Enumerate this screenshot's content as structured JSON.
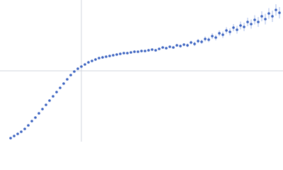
{
  "chart_data": {
    "type": "scatter",
    "xlim": [
      -115,
      285
    ],
    "ylim": [
      -100,
      100
    ],
    "series": [
      {
        "color": "#3a62c0",
        "error_color": "#a9bde8",
        "x": [
          -100,
          -95,
          -90,
          -85,
          -80,
          -75,
          -70,
          -65,
          -60,
          -55,
          -50,
          -45,
          -40,
          -35,
          -30,
          -25,
          -20,
          -15,
          -10,
          -5,
          0,
          5,
          10,
          15,
          20,
          25,
          30,
          35,
          40,
          45,
          50,
          55,
          60,
          65,
          70,
          75,
          80,
          85,
          90,
          95,
          100,
          105,
          110,
          115,
          120,
          125,
          130,
          135,
          140,
          145,
          150,
          155,
          160,
          165,
          170,
          175,
          180,
          185,
          190,
          195,
          200,
          205,
          210,
          215,
          220,
          225,
          230,
          235,
          240,
          245,
          250,
          255,
          260,
          265,
          270,
          275,
          280
        ],
        "values": [
          -95,
          -92,
          -89,
          -86,
          -82,
          -77,
          -71,
          -66,
          -60,
          -54,
          -48,
          -42,
          -36,
          -30,
          -24,
          -18,
          -12,
          -6,
          -1,
          3,
          6,
          9,
          12,
          14,
          16,
          18,
          19,
          20,
          21,
          22,
          23,
          24,
          25,
          25,
          26,
          27,
          27,
          28,
          28,
          29,
          30,
          29,
          31,
          33,
          32,
          34,
          33,
          36,
          35,
          37,
          36,
          40,
          38,
          42,
          41,
          45,
          44,
          49,
          47,
          53,
          51,
          57,
          55,
          61,
          58,
          64,
          62,
          69,
          66,
          72,
          69,
          77,
          73,
          81,
          77,
          86,
          82
        ],
        "errors": [
          0.5,
          0.5,
          0.5,
          0.5,
          0.5,
          0.5,
          0.5,
          0.5,
          0.5,
          0.5,
          0.5,
          0.5,
          0.5,
          0.5,
          0.5,
          0.5,
          0.5,
          0.5,
          0.5,
          0.5,
          0.5,
          0.5,
          0.5,
          0.5,
          0.5,
          0.5,
          0.5,
          0.5,
          0.5,
          0.5,
          0.5,
          0.5,
          0.5,
          0.5,
          0.5,
          0.5,
          0.5,
          0.5,
          0.5,
          0.5,
          0.5,
          1,
          1,
          1,
          1.5,
          1.5,
          1.5,
          2,
          2,
          2,
          2.5,
          2.5,
          3,
          3,
          3,
          3.5,
          3.5,
          4,
          4,
          4,
          4.5,
          4.5,
          5,
          5,
          5.5,
          5.5,
          6,
          6,
          6.5,
          6.5,
          7,
          7,
          7.5,
          7.5,
          8,
          8,
          8
        ]
      }
    ]
  }
}
